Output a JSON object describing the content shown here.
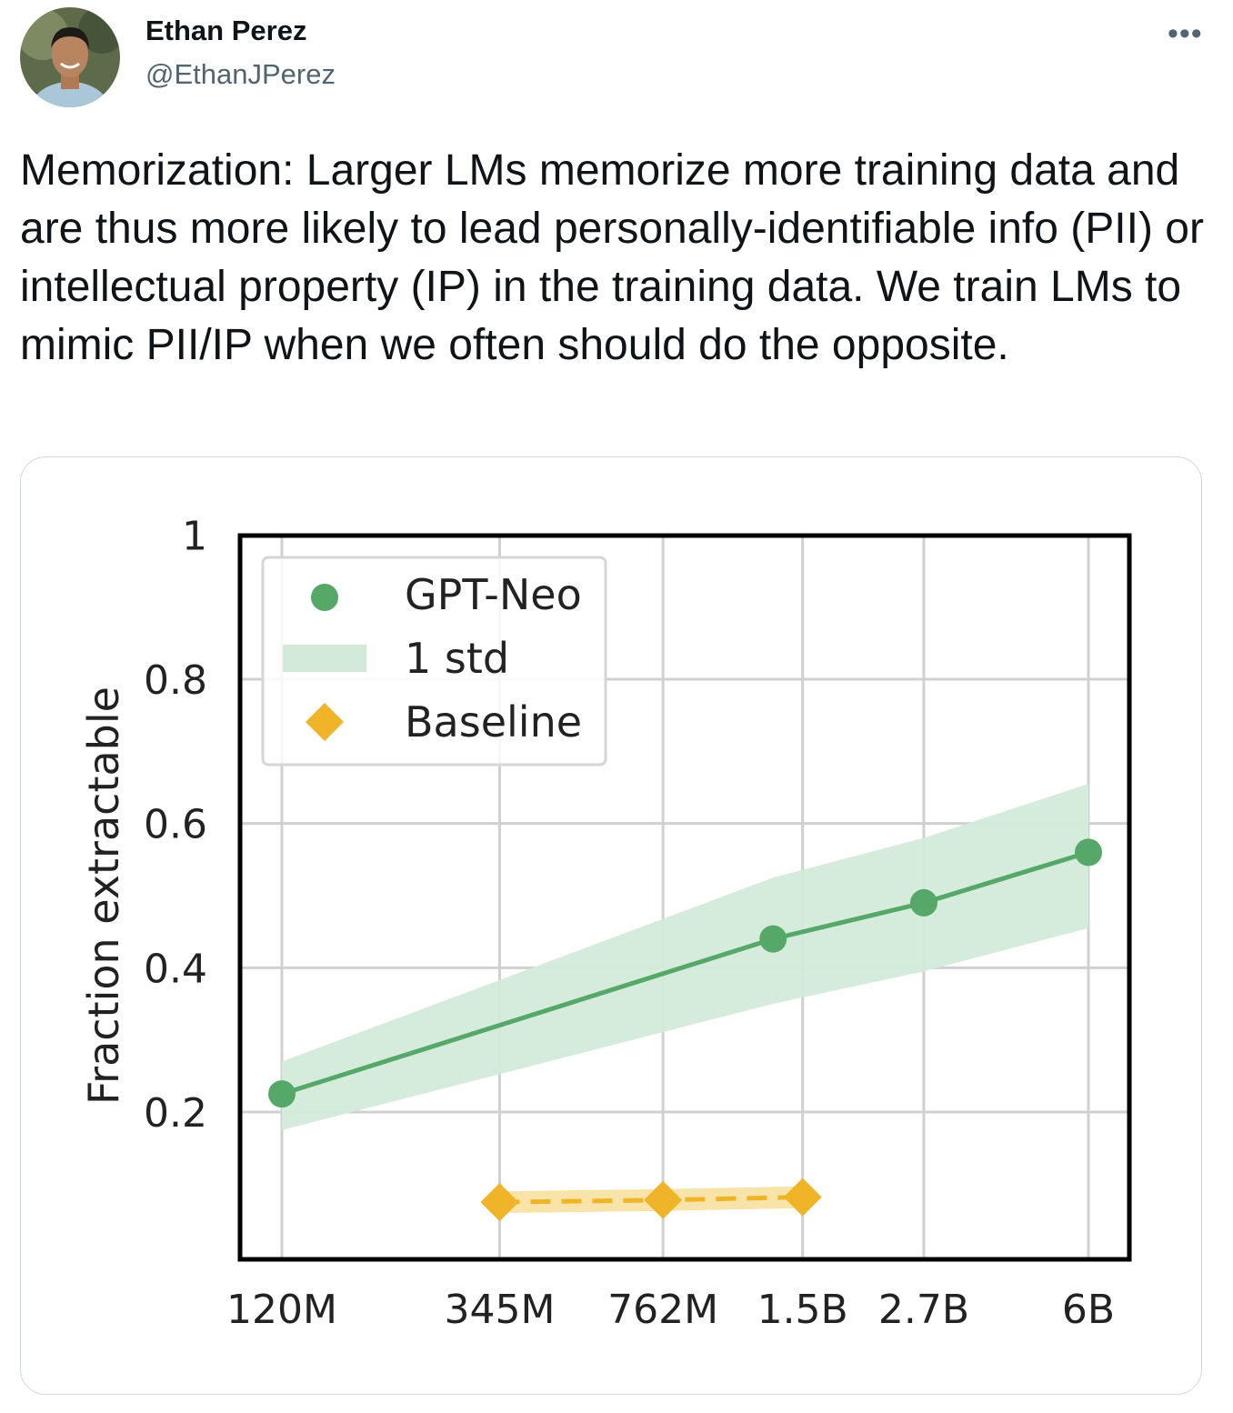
{
  "tweet": {
    "author_name": "Ethan Perez",
    "author_handle": "@EthanJPerez",
    "more_icon": "more-horizontal-icon",
    "text": "Memorization: Larger LMs memorize more training data and are thus more likely to lead personally-identifiable info (PII) or intellectual property (IP) in the training data. We train LMs to mimic PII/IP when we often should do the opposite."
  },
  "chart_data": {
    "type": "line",
    "title": "",
    "xlabel": "",
    "ylabel": "Fraction extractable",
    "categories": [
      "120M",
      "345M",
      "762M",
      "1.5B",
      "2.7B",
      "6B"
    ],
    "ylim": [
      0,
      1
    ],
    "yticks": [
      "0.2",
      "0.4",
      "0.6",
      "0.8",
      "1"
    ],
    "grid": true,
    "legend": {
      "position": "top-left",
      "entries": [
        "GPT-Neo",
        "1 std",
        "Baseline"
      ]
    },
    "series": [
      {
        "name": "GPT-Neo",
        "x": [
          "120M",
          "1.3B",
          "2.7B",
          "6B"
        ],
        "values": [
          0.225,
          0.44,
          0.49,
          0.56
        ],
        "std_lower": [
          0.175,
          0.35,
          0.395,
          0.455
        ],
        "std_upper": [
          0.27,
          0.525,
          0.58,
          0.655
        ],
        "color": "#55a868",
        "band_color": "#d3ead9"
      },
      {
        "name": "Baseline",
        "x": [
          "345M",
          "762M",
          "1.5B"
        ],
        "values": [
          0.075,
          0.078,
          0.082
        ],
        "color": "#f0b429",
        "band_color": "#f8e3a8",
        "style": "dashed"
      }
    ]
  }
}
